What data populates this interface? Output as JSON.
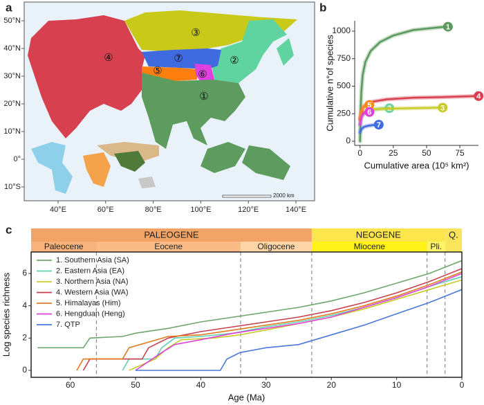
{
  "panel_labels": [
    "a",
    "b",
    "c"
  ],
  "map": {
    "lon_ticks": [
      {
        "value": 40,
        "label": "40°E"
      },
      {
        "value": 60,
        "label": "60°E"
      },
      {
        "value": 80,
        "label": "80°E"
      },
      {
        "value": 100,
        "label": "100°E"
      },
      {
        "value": 120,
        "label": "120°E"
      },
      {
        "value": 140,
        "label": "140°E"
      }
    ],
    "lat_ticks": [
      {
        "value": 50,
        "label": "50°N"
      },
      {
        "value": 40,
        "label": "40°N"
      },
      {
        "value": 30,
        "label": "30°N"
      },
      {
        "value": 20,
        "label": "20°N"
      },
      {
        "value": 10,
        "label": "10°N"
      },
      {
        "value": 0,
        "label": "0°"
      },
      {
        "value": -10,
        "label": "10°S"
      }
    ],
    "regions": [
      {
        "label": "①"
      },
      {
        "label": "②"
      },
      {
        "label": "③"
      },
      {
        "label": "④"
      },
      {
        "label": "⑤"
      },
      {
        "label": "⑥"
      },
      {
        "label": "⑦"
      }
    ],
    "scale_bar": "2000 km"
  },
  "chart_data": [
    {
      "type": "line",
      "x_label": "Cumulative area (10⁵ km²)",
      "y_label": "Cumulative n°of species",
      "xlim": [
        -4,
        89
      ],
      "xticks": [
        0,
        25,
        50,
        75
      ],
      "ylim": [
        -38,
        1094
      ],
      "yticks": [
        0,
        250,
        500,
        750,
        1000
      ],
      "series": [
        {
          "name": "1",
          "color": "#5b9a5d",
          "x": [
            0,
            0.5,
            1,
            2,
            4,
            8,
            15,
            25,
            40,
            64
          ],
          "values": [
            0,
            300,
            450,
            600,
            720,
            820,
            900,
            960,
            1010,
            1040
          ]
        },
        {
          "name": "2",
          "color": "#6fd3a4",
          "x": [
            0,
            1,
            3,
            6,
            10,
            15,
            20
          ],
          "values": [
            150,
            220,
            250,
            270,
            285,
            295,
            300
          ]
        },
        {
          "name": "3",
          "color": "#c8cc2a",
          "x": [
            0,
            2,
            5,
            10,
            20,
            40,
            60
          ],
          "values": [
            200,
            260,
            280,
            290,
            295,
            300,
            305
          ]
        },
        {
          "name": "4",
          "color": "#d6404f",
          "x": [
            0,
            2,
            5,
            10,
            20,
            40,
            60,
            87
          ],
          "values": [
            200,
            300,
            340,
            360,
            380,
            395,
            400,
            410
          ]
        },
        {
          "name": "5",
          "color": "#ff8c1a",
          "x": [
            0,
            1,
            2,
            3,
            5
          ],
          "values": [
            200,
            270,
            300,
            320,
            330
          ]
        },
        {
          "name": "6",
          "color": "#e040d8",
          "x": [
            0,
            1,
            2,
            3,
            5
          ],
          "values": [
            150,
            220,
            240,
            255,
            265
          ]
        },
        {
          "name": "7",
          "color": "#3f6ae0",
          "x": [
            0,
            1,
            3,
            6,
            9,
            12
          ],
          "values": [
            80,
            110,
            130,
            140,
            145,
            150
          ]
        }
      ]
    },
    {
      "type": "line",
      "x_label": "Age (Ma)",
      "y_label": "Log species richness",
      "xlim": [
        66,
        0
      ],
      "xticks": [
        60,
        50,
        40,
        30,
        20,
        10,
        0
      ],
      "ylim": [
        -0.43,
        7.33
      ],
      "yticks": [
        0,
        2,
        4,
        6
      ],
      "legend": "upper left",
      "periods": [
        {
          "name": "PALEOGENE",
          "start": 66,
          "end": 23,
          "color": "#f1a465"
        },
        {
          "name": "NEOGENE",
          "start": 23,
          "end": 2.58,
          "color": "#fde64b"
        },
        {
          "name": "Q.",
          "start": 2.58,
          "end": 0,
          "color": "#f9e45c"
        }
      ],
      "epochs": [
        {
          "name": "Paleocene",
          "start": 66,
          "end": 56,
          "color": "#f8b27b"
        },
        {
          "name": "Eocene",
          "start": 56,
          "end": 33.9,
          "color": "#fbbb86"
        },
        {
          "name": "Oligocene",
          "start": 33.9,
          "end": 23,
          "color": "#fdd6a8"
        },
        {
          "name": "Miocene",
          "start": 23,
          "end": 5.33,
          "color": "#fff31a"
        },
        {
          "name": "Pli.",
          "start": 5.33,
          "end": 2.58,
          "color": "#fff36a"
        }
      ],
      "series": [
        {
          "name": "1. Southern Asia (SA)",
          "color": "#6ea56c",
          "x": [
            65,
            58,
            57,
            52,
            50,
            45,
            40,
            35,
            30,
            25,
            20,
            15,
            10,
            5,
            0
          ],
          "values": [
            1.4,
            1.4,
            2.0,
            2.1,
            2.3,
            2.6,
            3.0,
            3.3,
            3.6,
            3.9,
            4.3,
            4.8,
            5.4,
            6.0,
            6.8
          ]
        },
        {
          "name": "2. Eastern Asia (EA)",
          "color": "#5fd0b0",
          "x": [
            52,
            51,
            47,
            46,
            44,
            40,
            35,
            30,
            25,
            20,
            15,
            10,
            5,
            0
          ],
          "values": [
            0,
            0.7,
            0.7,
            1.4,
            2.0,
            2.1,
            2.3,
            2.7,
            3.0,
            3.4,
            3.9,
            4.5,
            5.2,
            5.8
          ]
        },
        {
          "name": "3. Northern Asia (NA)",
          "color": "#c6cc2a",
          "x": [
            51,
            47,
            45,
            43,
            38,
            34,
            30,
            25,
            20,
            15,
            10,
            5,
            0
          ],
          "values": [
            0,
            0.7,
            1.4,
            1.9,
            2.0,
            2.2,
            2.5,
            2.9,
            3.3,
            3.8,
            4.4,
            5.0,
            5.6
          ]
        },
        {
          "name": "4. Western Asia (WA)",
          "color": "#c8404e",
          "x": [
            58,
            57,
            49,
            48,
            45,
            40,
            35,
            30,
            25,
            20,
            15,
            10,
            5,
            0
          ],
          "values": [
            0,
            0.7,
            0.7,
            1.4,
            2.0,
            2.4,
            2.7,
            3.0,
            3.3,
            3.7,
            4.2,
            4.8,
            5.5,
            6.3
          ]
        },
        {
          "name": "5. Himalayas (Him)",
          "color": "#e07a1e",
          "x": [
            59,
            58,
            52,
            51,
            45,
            40,
            35,
            30,
            25,
            20,
            15,
            10,
            5,
            0
          ],
          "values": [
            0,
            0.7,
            0.7,
            1.4,
            2.1,
            2.2,
            2.5,
            2.8,
            3.1,
            3.5,
            4.0,
            4.6,
            5.3,
            6.1
          ]
        },
        {
          "name": "6. Hengduan (Heng)",
          "color": "#e040d8",
          "x": [
            50,
            46,
            44,
            40,
            35,
            30,
            25,
            20,
            15,
            10,
            5,
            0
          ],
          "values": [
            0,
            1.1,
            1.6,
            1.9,
            2.3,
            2.6,
            2.9,
            3.3,
            3.9,
            4.5,
            5.2,
            6.0
          ]
        },
        {
          "name": "7. QTP",
          "color": "#4a78d8",
          "x": [
            50,
            37,
            36,
            34,
            30,
            25,
            20,
            15,
            10,
            5,
            0
          ],
          "values": [
            0,
            0,
            0.7,
            1.1,
            1.4,
            1.6,
            2.2,
            2.8,
            3.5,
            4.2,
            5.0
          ]
        }
      ]
    }
  ]
}
